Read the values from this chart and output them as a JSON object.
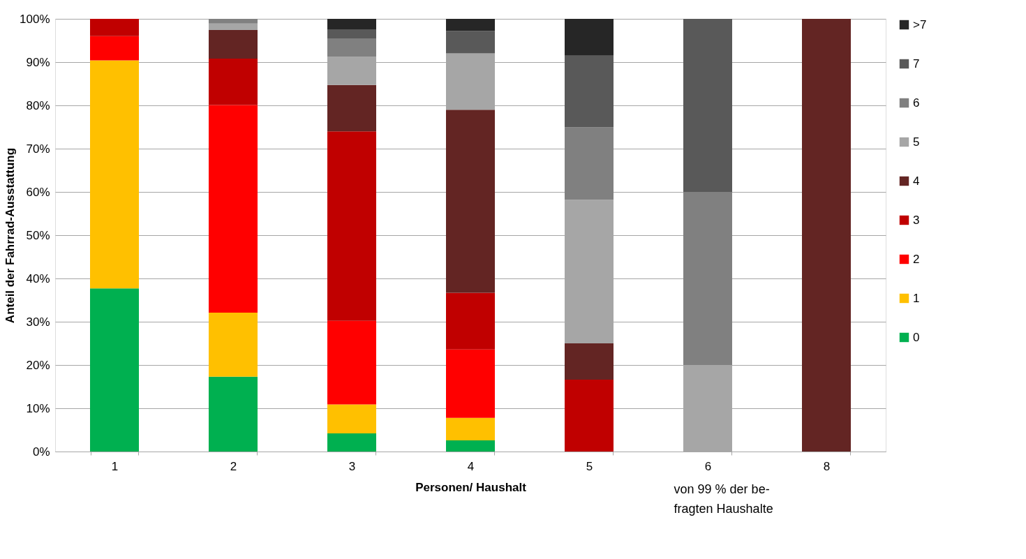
{
  "chart_data": {
    "type": "bar",
    "stacked": true,
    "xlabel": "Personen/ Haushalt",
    "ylabel": "Anteil der Fahrrad-Ausstattung",
    "categories": [
      "1",
      "2",
      "3",
      "4",
      "5",
      "6",
      "8"
    ],
    "series": [
      {
        "name": "0",
        "color": "#00b050",
        "values": [
          37.7,
          17.3,
          4.2,
          2.6,
          null,
          null,
          null
        ]
      },
      {
        "name": "1",
        "color": "#ffc000",
        "values": [
          52.7,
          14.8,
          6.7,
          5.2,
          null,
          null,
          null
        ]
      },
      {
        "name": "2",
        "color": "#ff0000",
        "values": [
          5.6,
          48.0,
          19.3,
          15.8,
          null,
          null,
          null
        ]
      },
      {
        "name": "3",
        "color": "#c00000",
        "values": [
          4.0,
          10.7,
          43.8,
          13.1,
          16.6,
          null,
          null
        ]
      },
      {
        "name": "4",
        "color": "#632523",
        "values": [
          null,
          6.6,
          10.7,
          42.3,
          8.4,
          null,
          100
        ]
      },
      {
        "name": "5",
        "color": "#a6a6a6",
        "values": [
          null,
          1.5,
          6.5,
          13.0,
          33.2,
          20,
          null
        ]
      },
      {
        "name": "6",
        "color": "#808080",
        "values": [
          null,
          1.1,
          4.3,
          null,
          16.7,
          40,
          null
        ]
      },
      {
        "name": "7",
        "color": "#595959",
        "values": [
          null,
          null,
          2.1,
          5.2,
          16.6,
          40,
          null
        ]
      },
      {
        "name": ">7",
        "color": "#262626",
        "values": [
          null,
          null,
          2.4,
          2.8,
          8.5,
          null,
          null
        ]
      }
    ],
    "ylim": [
      0,
      100
    ],
    "yticks": [
      {
        "value": 0,
        "label": "0%"
      },
      {
        "value": 10,
        "label": "10%"
      },
      {
        "value": 20,
        "label": "20%"
      },
      {
        "value": 30,
        "label": "30%"
      },
      {
        "value": 40,
        "label": "40%"
      },
      {
        "value": 50,
        "label": "50%"
      },
      {
        "value": 60,
        "label": "60%"
      },
      {
        "value": 70,
        "label": "70%"
      },
      {
        "value": 80,
        "label": "80%"
      },
      {
        "value": 90,
        "label": "90%"
      },
      {
        "value": 100,
        "label": "100%"
      }
    ],
    "grid": "y",
    "legend": "right",
    "annotations": [
      "von 99 % der be-\nfragten Haushalte"
    ]
  }
}
